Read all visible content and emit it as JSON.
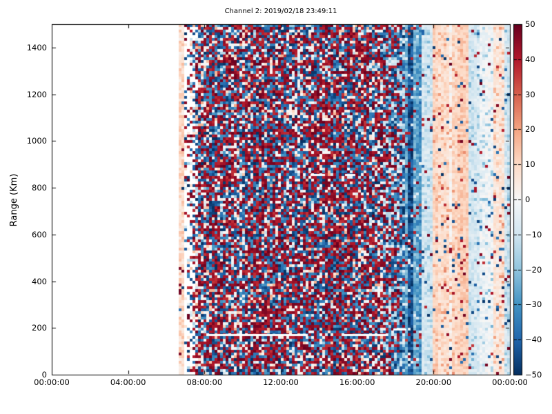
{
  "chart_data": {
    "type": "heatmap",
    "title": "Channel 2: 2019/02/18 23:49:11",
    "xlabel": "",
    "ylabel": "Range (Km)",
    "x_tick_labels": [
      "00:00:00",
      "04:00:00",
      "08:00:00",
      "12:00:00",
      "16:00:00",
      "20:00:00",
      "00:00:00"
    ],
    "x_tick_hours": [
      0,
      4,
      8,
      12,
      16,
      20,
      24
    ],
    "x_range_hours": [
      0,
      24
    ],
    "y_tick_values": [
      "0",
      "200",
      "400",
      "600",
      "800",
      "1000",
      "1200",
      "1400"
    ],
    "y_tick_numbers": [
      0,
      200,
      400,
      600,
      800,
      1000,
      1200,
      1400
    ],
    "ylim": [
      0,
      1500
    ],
    "grid_on": false,
    "colorbar": {
      "tick_labels": [
        "50",
        "40",
        "30",
        "20",
        "10",
        "0",
        "−10",
        "−20",
        "−30",
        "−40",
        "−50"
      ],
      "tick_values": [
        50,
        40,
        30,
        20,
        10,
        0,
        -10,
        -20,
        -30,
        -40,
        -50
      ],
      "clim": [
        -50,
        50
      ],
      "colormap": "RdBu_r",
      "stops": [
        [
          -50,
          "#053061"
        ],
        [
          -40,
          "#2166ac"
        ],
        [
          -30,
          "#4393c3"
        ],
        [
          -20,
          "#92c5de"
        ],
        [
          -10,
          "#d1e5f0"
        ],
        [
          0,
          "#f7f7f7"
        ],
        [
          10,
          "#fddbc7"
        ],
        [
          20,
          "#f4a582"
        ],
        [
          30,
          "#d6604d"
        ],
        [
          40,
          "#b2182b"
        ],
        [
          50,
          "#67001f"
        ]
      ]
    },
    "grid": {
      "cols": 166,
      "rows": 127
    },
    "seed": 20190218,
    "data_start_hour": 6.68,
    "regions": [
      {
        "type": "empty",
        "from_h": 0,
        "to_h": 6.68
      },
      {
        "type": "pale_column",
        "from_h": 6.68,
        "to_h": 6.95,
        "base": 9,
        "noise": 7,
        "speckle": 0.03
      },
      {
        "type": "sparse",
        "from_h": 6.95,
        "to_h": 7.6,
        "density_from": 0.15,
        "density_to": 0.75
      },
      {
        "type": "dense",
        "from_h": 7.6,
        "to_h": 17.4,
        "red_share": 0.45,
        "blue_share": 0.34
      },
      {
        "type": "transition",
        "from_h": 17.4,
        "to_h": 18.55
      },
      {
        "type": "blue_band",
        "from_h": 18.55,
        "to_h": 19.4
      },
      {
        "type": "pale_stripes",
        "from_h": 19.4,
        "to_h": 24.01,
        "speckle": 0.055
      }
    ],
    "pale_stripe_tints": [
      [
        19.4,
        20.0,
        -8
      ],
      [
        20.0,
        20.8,
        9
      ],
      [
        20.8,
        21.0,
        2
      ],
      [
        21.0,
        21.9,
        11
      ],
      [
        21.9,
        22.45,
        -8
      ],
      [
        22.45,
        23.1,
        -3
      ],
      [
        23.1,
        23.7,
        7
      ],
      [
        23.7,
        24.01,
        -9
      ]
    ],
    "artifact_lines": [
      {
        "range_km": 170,
        "from_h": 8.1,
        "to_h": 13.4
      },
      {
        "range_km": 170,
        "from_h": 15.3,
        "to_h": 17.6
      },
      {
        "range_km": 185,
        "from_h": 17.9,
        "to_h": 18.6
      },
      {
        "range_km": 855,
        "from_h": 13.55,
        "to_h": 14.3
      },
      {
        "range_km": 855,
        "from_h": 15.35,
        "to_h": 15.9
      }
    ]
  }
}
